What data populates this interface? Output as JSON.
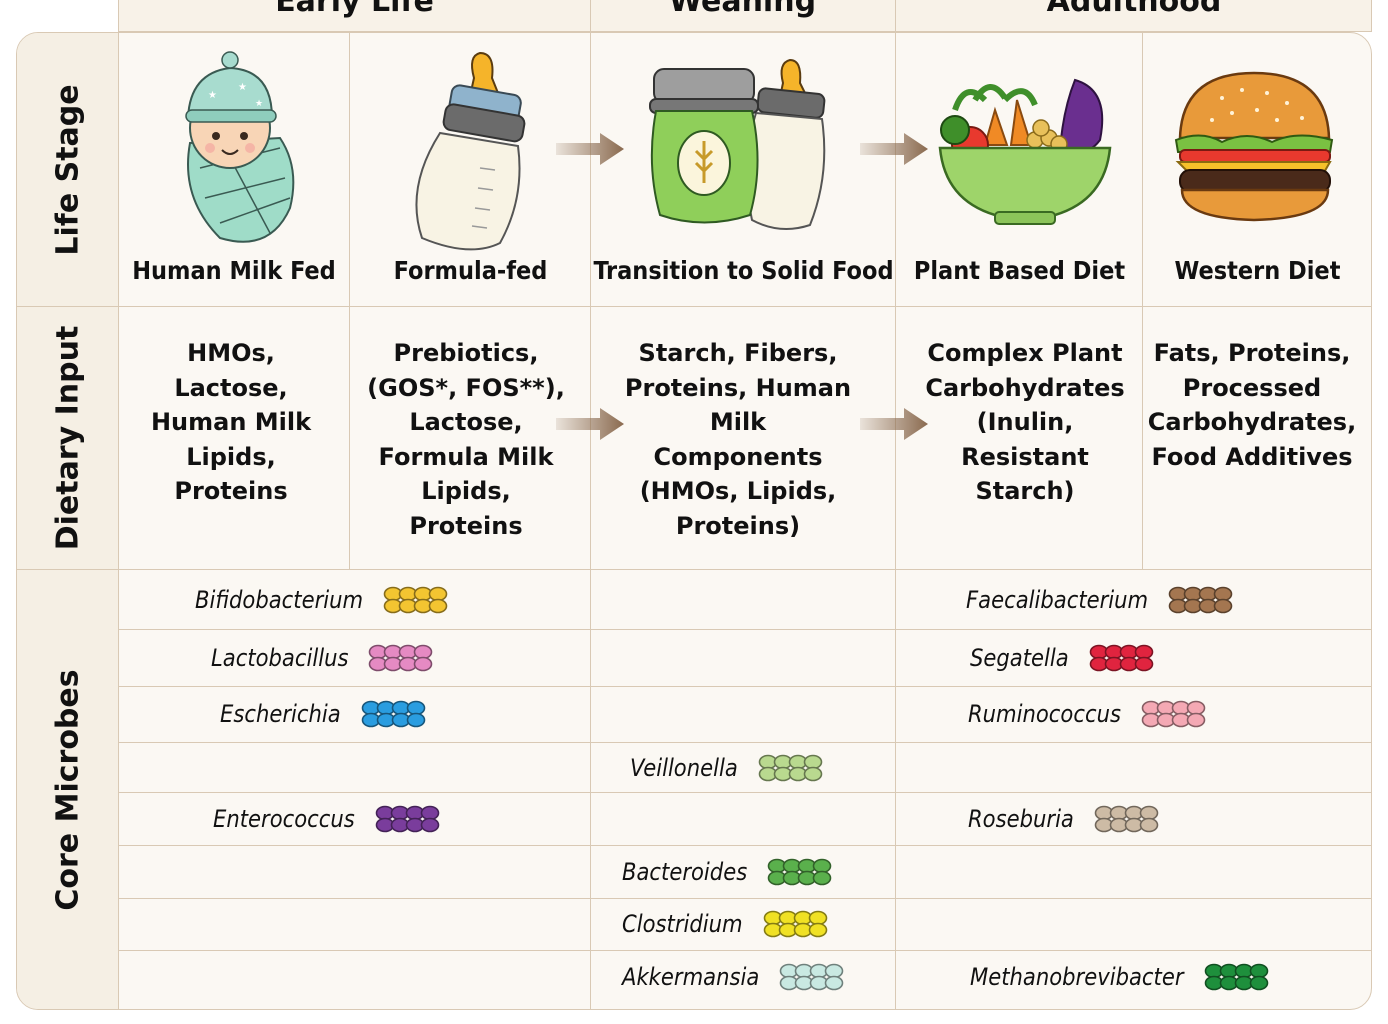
{
  "groups": {
    "early_life": "Early Life",
    "weaning": "Weaning",
    "adulthood": "Adulthood"
  },
  "row_headers": {
    "life_stage": "Life Stage",
    "dietary_input": "Dietary Input",
    "core_microbes": "Core Microbes"
  },
  "life_stages": [
    {
      "label": "Human Milk Fed",
      "icon": "swaddled-baby-icon"
    },
    {
      "label": "Formula-fed",
      "icon": "baby-bottle-icon"
    },
    {
      "label": "Transition to Solid Food",
      "icon": "baby-food-jar-and-bottle-icon"
    },
    {
      "label": "Plant Based Diet",
      "icon": "vegetable-bowl-icon"
    },
    {
      "label": "Western Diet",
      "icon": "burger-icon"
    }
  ],
  "dietary_inputs": [
    "HMOs,\nLactose,\nHuman Milk\nLipids,\nProteins",
    "Prebiotics,\n(GOS*, FOS**),\nLactose,\nFormula Milk\nLipids,\nProteins",
    "Starch, Fibers,\nProteins, Human\nMilk Components\n(HMOs, Lipids,\nProteins)",
    "Complex Plant\nCarbohydrates\n(Inulin,\nResistant\nStarch)",
    "Fats, Proteins,\nProcessed\nCarbohydrates,\nFood Additives"
  ],
  "microbes": {
    "early_life": [
      {
        "name": "Bifidobacterium",
        "color": "#f3c531"
      },
      {
        "name": "Lactobacillus",
        "color": "#e58ac3"
      },
      {
        "name": "Escherichia",
        "color": "#2a9de0"
      },
      {
        "name": "Enterococcus",
        "color": "#7a3d9c"
      }
    ],
    "weaning": [
      {
        "name": "Veillonella",
        "color": "#b9d98f"
      },
      {
        "name": "Bacteroides",
        "color": "#5ab04c"
      },
      {
        "name": "Clostridium",
        "color": "#f0e124"
      },
      {
        "name": "Akkermansia",
        "color": "#c9e9e2"
      }
    ],
    "adulthood": [
      {
        "name": "Faecalibacterium",
        "color": "#a47650"
      },
      {
        "name": "Segatella",
        "color": "#e0243f"
      },
      {
        "name": "Ruminococcus",
        "color": "#f4a9b4"
      },
      {
        "name": "Roseburia",
        "color": "#cdbba5"
      },
      {
        "name": "Methanobrevibacter",
        "color": "#1e8f3c"
      }
    ]
  },
  "colors": {
    "grid_line": "#d9c9b4",
    "header_fill": "#f8f2e8",
    "arrow": "#8a6a4f"
  }
}
